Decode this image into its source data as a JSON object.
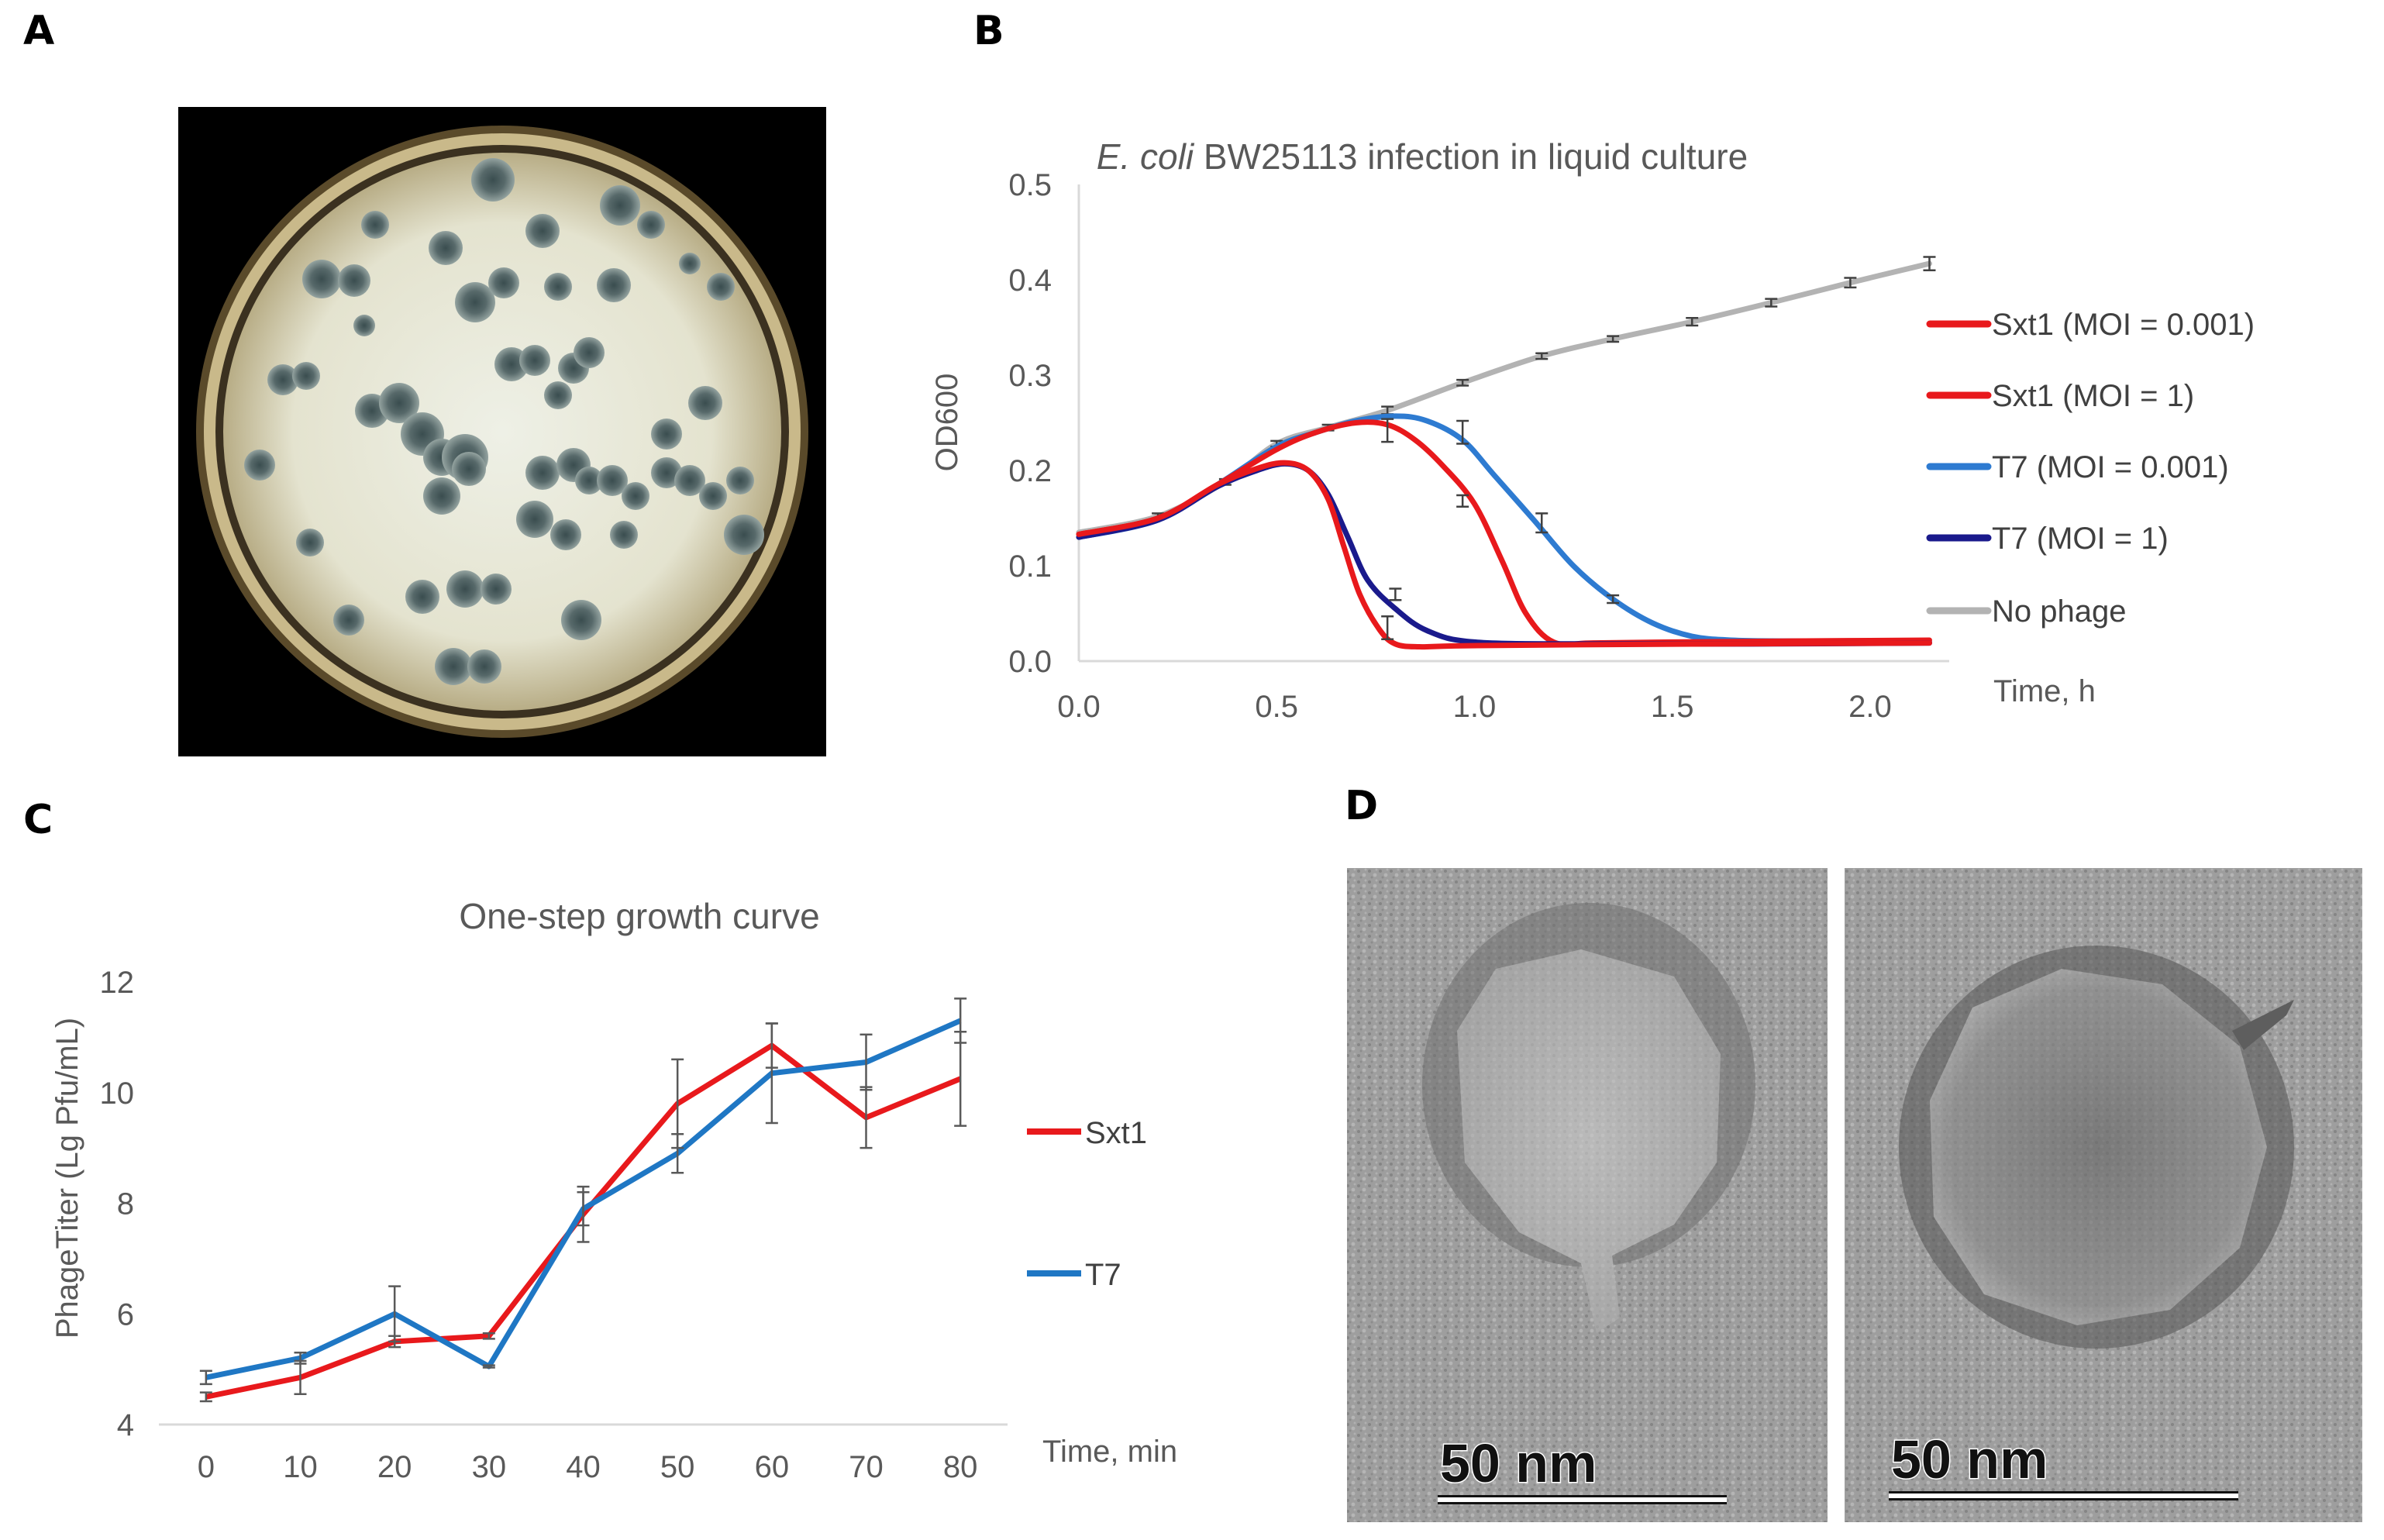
{
  "panels": {
    "a": "A",
    "b": "B",
    "c": "C",
    "d": "D"
  },
  "chart_data": [
    {
      "panel": "B",
      "type": "line",
      "title_italic": "E. coli",
      "title_rest": " BW25113 infection in liquid culture",
      "xlabel": "Time, h",
      "ylabel": "OD600",
      "xlim": [
        0,
        2.2
      ],
      "ylim": [
        0,
        0.5
      ],
      "xticks": [
        "0.0",
        "0.5",
        "1.0",
        "1.5",
        "2.0"
      ],
      "yticks": [
        "0.0",
        "0.1",
        "0.2",
        "0.3",
        "0.4",
        "0.5"
      ],
      "grid": false,
      "legend_position": "right",
      "series": [
        {
          "name": "Sxt1 (MOI = 0.001)",
          "color": "#e8191c",
          "x": [
            0,
            0.2,
            0.35,
            0.5,
            0.6,
            0.7,
            0.78,
            0.85,
            0.92,
            1.0,
            1.07,
            1.13,
            1.2,
            1.3,
            1.5,
            1.8,
            2.15
          ],
          "y": [
            0.133,
            0.15,
            0.185,
            0.222,
            0.24,
            0.25,
            0.248,
            0.232,
            0.205,
            0.165,
            0.105,
            0.05,
            0.02,
            0.019,
            0.02,
            0.021,
            0.022
          ],
          "err_x": [
            0.78,
            0.97
          ],
          "err_y": [
            0.242,
            0.168
          ],
          "err_size": [
            0.012,
            0.006
          ]
        },
        {
          "name": "Sxt1 (MOI = 1)",
          "color": "#e8191c",
          "x": [
            0,
            0.2,
            0.35,
            0.45,
            0.52,
            0.58,
            0.63,
            0.67,
            0.71,
            0.76,
            0.8,
            0.86,
            0.95,
            1.2,
            1.6,
            2.15
          ],
          "y": [
            0.133,
            0.15,
            0.185,
            0.202,
            0.208,
            0.2,
            0.17,
            0.12,
            0.07,
            0.033,
            0.018,
            0.015,
            0.016,
            0.017,
            0.018,
            0.019
          ],
          "err_x": [
            0.78
          ],
          "err_y": [
            0.035
          ],
          "err_size": [
            0.012
          ]
        },
        {
          "name": "T7 (MOI = 0.001)",
          "color": "#2e7bd1",
          "x": [
            0,
            0.2,
            0.35,
            0.5,
            0.6,
            0.7,
            0.8,
            0.88,
            0.97,
            1.05,
            1.15,
            1.25,
            1.35,
            1.45,
            1.55,
            1.65,
            1.8,
            2.15
          ],
          "y": [
            0.13,
            0.148,
            0.185,
            0.225,
            0.24,
            0.252,
            0.257,
            0.252,
            0.232,
            0.195,
            0.148,
            0.1,
            0.065,
            0.04,
            0.026,
            0.022,
            0.021,
            0.02
          ],
          "err_x": [
            0.97,
            1.17,
            1.35
          ],
          "err_y": [
            0.24,
            0.145,
            0.065
          ],
          "err_size": [
            0.012,
            0.01,
            0.004
          ]
        },
        {
          "name": "T7 (MOI = 1)",
          "color": "#1a1a8c",
          "x": [
            0,
            0.2,
            0.35,
            0.45,
            0.52,
            0.58,
            0.63,
            0.68,
            0.73,
            0.8,
            0.88,
            1.0,
            1.3,
            1.7,
            2.15
          ],
          "y": [
            0.13,
            0.148,
            0.183,
            0.2,
            0.207,
            0.2,
            0.175,
            0.13,
            0.085,
            0.055,
            0.032,
            0.02,
            0.018,
            0.018,
            0.019
          ],
          "err_x": [
            0.8
          ],
          "err_y": [
            0.07
          ],
          "err_size": [
            0.006
          ]
        },
        {
          "name": "No phage",
          "color": "#b3b3b3",
          "x": [
            0,
            0.2,
            0.37,
            0.5,
            0.63,
            0.78,
            0.97,
            1.17,
            1.35,
            1.55,
            1.75,
            1.95,
            2.15
          ],
          "y": [
            0.135,
            0.152,
            0.188,
            0.228,
            0.245,
            0.263,
            0.292,
            0.32,
            0.338,
            0.356,
            0.376,
            0.397,
            0.417
          ],
          "err_x": [
            0.2,
            0.37,
            0.5,
            0.63,
            0.78,
            0.97,
            1.17,
            1.35,
            1.55,
            1.75,
            1.95,
            2.15
          ],
          "err_y": [
            0.152,
            0.188,
            0.228,
            0.245,
            0.263,
            0.292,
            0.32,
            0.338,
            0.356,
            0.376,
            0.397,
            0.417
          ],
          "err_size": [
            0.003,
            0.003,
            0.003,
            0.003,
            0.004,
            0.003,
            0.003,
            0.003,
            0.004,
            0.004,
            0.005,
            0.007
          ]
        }
      ]
    },
    {
      "panel": "C",
      "type": "line",
      "title": "One-step growth curve",
      "xlabel": "Time, min",
      "ylabel": "PhageTiter (Lg Pfu/mL)",
      "categories": [
        "0",
        "10",
        "20",
        "30",
        "40",
        "50",
        "60",
        "70",
        "80"
      ],
      "ylim": [
        4,
        12
      ],
      "yticks": [
        "4",
        "6",
        "8",
        "10",
        "12"
      ],
      "grid": false,
      "legend_position": "right",
      "series": [
        {
          "name": "Sxt1",
          "color": "#e8191c",
          "values": [
            4.5,
            4.85,
            5.5,
            5.6,
            7.8,
            9.8,
            10.85,
            9.55,
            10.25
          ],
          "errors": [
            0.08,
            0.3,
            0.1,
            0.05,
            0.5,
            0.8,
            0.4,
            0.55,
            0.85
          ]
        },
        {
          "name": "T7",
          "color": "#1f77c4",
          "values": [
            4.85,
            5.2,
            6.0,
            5.05,
            7.9,
            8.9,
            10.35,
            10.55,
            11.3
          ],
          "errors": [
            0.12,
            0.1,
            0.5,
            0.02,
            0.3,
            0.35,
            0.9,
            0.5,
            0.4
          ]
        }
      ]
    }
  ],
  "micrographs": {
    "scale_left": "50 nm",
    "scale_right": "50 nm"
  }
}
